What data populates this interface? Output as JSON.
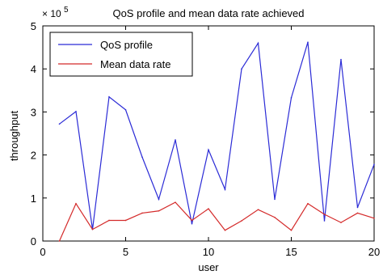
{
  "chart_data": {
    "type": "line",
    "title": "QoS profile and mean data rate achieved",
    "xlabel": "user",
    "ylabel": "throughput",
    "y_multiplier_label": "× 10",
    "y_multiplier_exponent": "5",
    "xlim": [
      0,
      20
    ],
    "ylim": [
      0,
      5
    ],
    "xticks": [
      0,
      5,
      10,
      15,
      20
    ],
    "yticks": [
      0,
      1,
      2,
      3,
      4,
      5
    ],
    "grid": false,
    "legend_position": "top-left",
    "x": [
      1,
      2,
      3,
      4,
      5,
      6,
      7,
      8,
      9,
      10,
      11,
      12,
      13,
      14,
      15,
      16,
      17,
      18,
      19,
      20
    ],
    "series": [
      {
        "name": "QoS profile",
        "color": "#2b2bd6",
        "values": [
          2.72,
          3.01,
          0.27,
          3.35,
          3.05,
          1.95,
          0.97,
          2.35,
          0.4,
          2.12,
          1.2,
          4.0,
          4.6,
          0.97,
          3.33,
          4.62,
          0.47,
          4.22,
          0.78,
          1.78
        ]
      },
      {
        "name": "Mean data rate",
        "color": "#d42a2a",
        "values": [
          0.0,
          0.87,
          0.27,
          0.48,
          0.48,
          0.65,
          0.7,
          0.9,
          0.48,
          0.75,
          0.25,
          0.47,
          0.73,
          0.55,
          0.25,
          0.87,
          0.62,
          0.43,
          0.65,
          0.53
        ]
      }
    ]
  }
}
